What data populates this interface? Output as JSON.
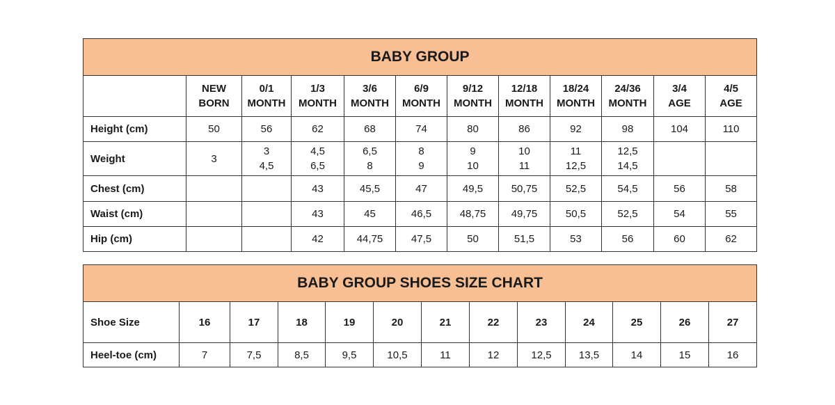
{
  "baby_group": {
    "title": "BABY GROUP",
    "columns": [
      [
        "NEW",
        "BORN"
      ],
      [
        "0/1",
        "MONTH"
      ],
      [
        "1/3",
        "MONTH"
      ],
      [
        "3/6",
        "MONTH"
      ],
      [
        "6/9",
        "MONTH"
      ],
      [
        "9/12",
        "MONTH"
      ],
      [
        "12/18",
        "MONTH"
      ],
      [
        "18/24",
        "MONTH"
      ],
      [
        "24/36",
        "MONTH"
      ],
      [
        "3/4",
        "AGE"
      ],
      [
        "4/5",
        "AGE"
      ]
    ],
    "rows": [
      {
        "label": "Height (cm)",
        "values": [
          [
            "50"
          ],
          [
            "56"
          ],
          [
            "62"
          ],
          [
            "68"
          ],
          [
            "74"
          ],
          [
            "80"
          ],
          [
            "86"
          ],
          [
            "92"
          ],
          [
            "98"
          ],
          [
            "104"
          ],
          [
            "110"
          ]
        ]
      },
      {
        "label": "Weight",
        "values": [
          [
            "3"
          ],
          [
            "3",
            "4,5"
          ],
          [
            "4,5",
            "6,5"
          ],
          [
            "6,5",
            "8"
          ],
          [
            "8",
            "9"
          ],
          [
            "9",
            "10"
          ],
          [
            "10",
            "11"
          ],
          [
            "11",
            "12,5"
          ],
          [
            "12,5",
            "14,5"
          ],
          [],
          []
        ]
      },
      {
        "label": "Chest (cm)",
        "values": [
          [],
          [],
          [
            "43"
          ],
          [
            "45,5"
          ],
          [
            "47"
          ],
          [
            "49,5"
          ],
          [
            "50,75"
          ],
          [
            "52,5"
          ],
          [
            "54,5"
          ],
          [
            "56"
          ],
          [
            "58"
          ]
        ]
      },
      {
        "label": "Waist (cm)",
        "values": [
          [],
          [],
          [
            "43"
          ],
          [
            "45"
          ],
          [
            "46,5"
          ],
          [
            "48,75"
          ],
          [
            "49,75"
          ],
          [
            "50,5"
          ],
          [
            "52,5"
          ],
          [
            "54"
          ],
          [
            "55"
          ]
        ]
      },
      {
        "label": "Hip (cm)",
        "values": [
          [],
          [],
          [
            "42"
          ],
          [
            "44,75"
          ],
          [
            "47,5"
          ],
          [
            "50"
          ],
          [
            "51,5"
          ],
          [
            "53"
          ],
          [
            "56"
          ],
          [
            "60"
          ],
          [
            "62"
          ]
        ]
      }
    ]
  },
  "shoes": {
    "title": "BABY GROUP SHOES SIZE CHART",
    "rows": [
      {
        "label": "Shoe Size",
        "bold": true,
        "values": [
          "16",
          "17",
          "18",
          "19",
          "20",
          "21",
          "22",
          "23",
          "24",
          "25",
          "26",
          "27"
        ]
      },
      {
        "label": "Heel-toe (cm)",
        "bold": false,
        "values": [
          "7",
          "7,5",
          "8,5",
          "9,5",
          "10,5",
          "11",
          "12",
          "12,5",
          "13,5",
          "14",
          "15",
          "16"
        ]
      }
    ]
  },
  "colors": {
    "header_bg": "#F8BE94",
    "border": "#333333"
  }
}
